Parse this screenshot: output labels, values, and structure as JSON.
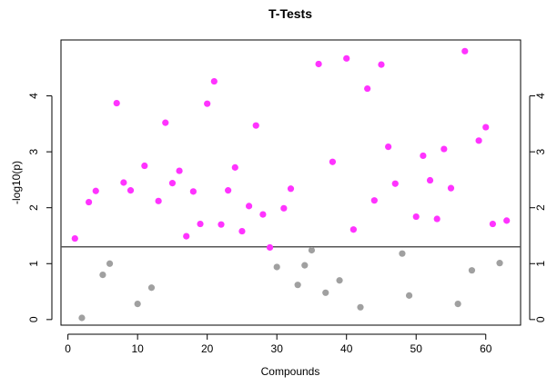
{
  "chart_data": {
    "type": "scatter",
    "title": "T-Tests",
    "xlabel": "Compounds",
    "ylabel": "-log10(p)",
    "xlim": [
      -1,
      65
    ],
    "ylim": [
      -0.1,
      5.0
    ],
    "x_ticks": [
      0,
      10,
      20,
      30,
      40,
      50,
      60
    ],
    "x_tick_labels": [
      "0",
      "10",
      "20",
      "30",
      "40",
      "50",
      "60"
    ],
    "y_ticks": [
      0,
      1,
      2,
      3,
      4
    ],
    "y_tick_labels": [
      "0",
      "1",
      "2",
      "3",
      "4"
    ],
    "y_ticks_right": true,
    "grid": false,
    "threshold": 1.3,
    "colors": {
      "significant": "#ff33ff",
      "not_significant": "#a0a0a0",
      "threshold_line": "#555555",
      "frame": "#000000"
    },
    "series": [
      {
        "color": "#ff33ff",
        "points": [
          [
            1,
            1.45
          ],
          [
            3,
            2.1
          ],
          [
            4,
            2.3
          ],
          [
            7,
            3.87
          ],
          [
            8,
            2.45
          ],
          [
            9,
            2.31
          ],
          [
            11,
            2.75
          ],
          [
            13,
            2.12
          ],
          [
            14,
            3.52
          ],
          [
            15,
            2.44
          ],
          [
            16,
            2.66
          ],
          [
            17,
            1.49
          ],
          [
            18,
            2.29
          ],
          [
            19,
            1.71
          ],
          [
            20,
            3.86
          ],
          [
            21,
            4.26
          ],
          [
            22,
            1.7
          ],
          [
            23,
            2.31
          ],
          [
            24,
            2.72
          ],
          [
            25,
            1.58
          ],
          [
            26,
            2.03
          ],
          [
            27,
            3.47
          ],
          [
            28,
            1.88
          ],
          [
            29,
            1.29
          ],
          [
            31,
            1.99
          ],
          [
            32,
            2.34
          ],
          [
            36,
            4.57
          ],
          [
            38,
            2.82
          ],
          [
            40,
            4.67
          ],
          [
            41,
            1.61
          ],
          [
            43,
            4.13
          ],
          [
            44,
            2.13
          ],
          [
            45,
            4.56
          ],
          [
            46,
            3.09
          ],
          [
            47,
            2.43
          ],
          [
            50,
            1.84
          ],
          [
            51,
            2.93
          ],
          [
            52,
            2.49
          ],
          [
            53,
            1.8
          ],
          [
            54,
            3.05
          ],
          [
            55,
            2.35
          ],
          [
            57,
            4.8
          ],
          [
            59,
            3.2
          ],
          [
            60,
            3.44
          ],
          [
            61,
            1.71
          ],
          [
            63,
            1.77
          ]
        ]
      },
      {
        "color": "#a0a0a0",
        "points": [
          [
            2,
            0.03
          ],
          [
            5,
            0.8
          ],
          [
            6,
            1.0
          ],
          [
            10,
            0.28
          ],
          [
            12,
            0.57
          ],
          [
            30,
            0.94
          ],
          [
            33,
            0.62
          ],
          [
            34,
            0.97
          ],
          [
            35,
            1.24
          ],
          [
            37,
            0.48
          ],
          [
            39,
            0.7
          ],
          [
            42,
            0.22
          ],
          [
            48,
            1.18
          ],
          [
            49,
            0.43
          ],
          [
            56,
            0.28
          ],
          [
            58,
            0.88
          ],
          [
            62,
            1.01
          ]
        ]
      }
    ]
  }
}
